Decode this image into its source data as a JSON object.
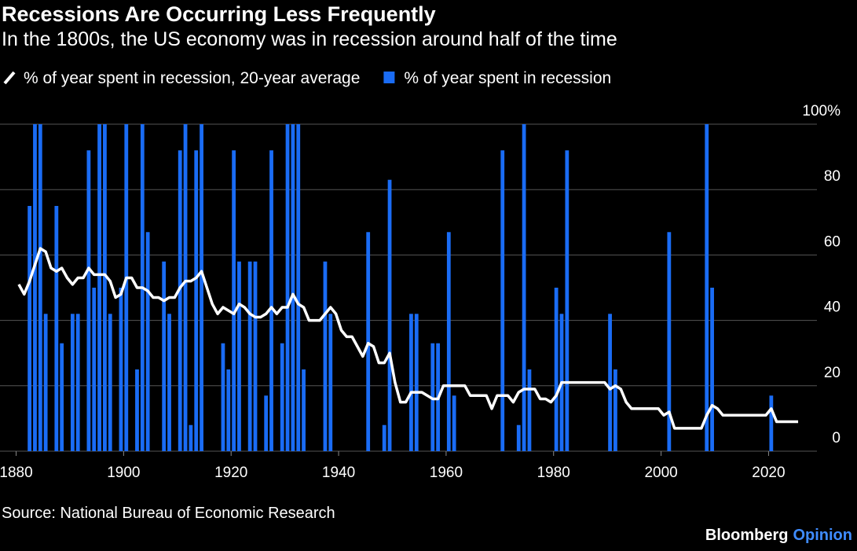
{
  "chart_data": {
    "type": "bar",
    "title": "Recessions Are Occurring Less Frequently",
    "subtitle": "In the 1800s, the US economy was in recession around half of the time",
    "source": "Source: National Bureau of Economic Research",
    "brand": "Bloomberg",
    "brand_suffix": "Opinion",
    "xlim": [
      1877,
      2029
    ],
    "xticks": [
      1880,
      1900,
      1920,
      1940,
      1960,
      1980,
      2000,
      2020
    ],
    "ylim": [
      0,
      100
    ],
    "yticks": [
      0,
      20,
      40,
      60,
      80,
      {
        "value": 100,
        "label": "100%"
      }
    ],
    "grid": true,
    "legend": "top-left",
    "series": [
      {
        "name": "% of year spent in recession, 20-year average",
        "color": "#ffffff",
        "type": "line",
        "x": [
          1880,
          1881,
          1882,
          1883,
          1884,
          1885,
          1886,
          1887,
          1888,
          1889,
          1890,
          1891,
          1892,
          1893,
          1894,
          1895,
          1896,
          1897,
          1898,
          1899,
          1900,
          1901,
          1902,
          1903,
          1904,
          1905,
          1906,
          1907,
          1908,
          1909,
          1910,
          1911,
          1912,
          1913,
          1914,
          1915,
          1916,
          1917,
          1918,
          1919,
          1920,
          1921,
          1922,
          1923,
          1924,
          1925,
          1926,
          1927,
          1928,
          1929,
          1930,
          1931,
          1932,
          1933,
          1934,
          1935,
          1936,
          1937,
          1938,
          1939,
          1940,
          1941,
          1942,
          1943,
          1944,
          1945,
          1946,
          1947,
          1948,
          1949,
          1950,
          1951,
          1952,
          1953,
          1954,
          1955,
          1956,
          1957,
          1958,
          1959,
          1960,
          1961,
          1962,
          1963,
          1964,
          1965,
          1966,
          1967,
          1968,
          1969,
          1970,
          1971,
          1972,
          1973,
          1974,
          1975,
          1976,
          1977,
          1978,
          1979,
          1980,
          1981,
          1982,
          1983,
          1984,
          1985,
          1986,
          1987,
          1988,
          1989,
          1990,
          1991,
          1992,
          1993,
          1994,
          1995,
          1996,
          1997,
          1998,
          1999,
          2000,
          2001,
          2002,
          2003,
          2004,
          2005,
          2006,
          2007,
          2008,
          2009,
          2010,
          2011,
          2012,
          2013,
          2014,
          2015,
          2016,
          2017,
          2018,
          2019,
          2020,
          2021,
          2022,
          2023,
          2024,
          2025
        ],
        "values": [
          51,
          48,
          52,
          57,
          62,
          61,
          56,
          55,
          56,
          53,
          51,
          53,
          53,
          56,
          54,
          54,
          54,
          52,
          47,
          48,
          53,
          53,
          50,
          50,
          49,
          47,
          47,
          46,
          47,
          47,
          50,
          52,
          52,
          53,
          55,
          50,
          45,
          42,
          44,
          43,
          42,
          45,
          44,
          42,
          41,
          41,
          42,
          44,
          42,
          44,
          44,
          48,
          45,
          44,
          40,
          40,
          40,
          42,
          44,
          42,
          37,
          35,
          35,
          32,
          29,
          33,
          32,
          27,
          27,
          30,
          21,
          15,
          15,
          18,
          18,
          18,
          17,
          16,
          16,
          20,
          20,
          20,
          20,
          20,
          17,
          17,
          17,
          17,
          13,
          17,
          17,
          17,
          15,
          18,
          19,
          19,
          19,
          16,
          16,
          15,
          17,
          21,
          21,
          21,
          21,
          21,
          21,
          21,
          21,
          21,
          19,
          20,
          19,
          15,
          13,
          13,
          13,
          13,
          13,
          13,
          11,
          12,
          7,
          7,
          7,
          7,
          7,
          7,
          11,
          14,
          13,
          11,
          11,
          11,
          11,
          11,
          11,
          11,
          11,
          11,
          13,
          9,
          9,
          9,
          9,
          9
        ]
      },
      {
        "name": "% of year spent in recession",
        "color": "#1a6cf5",
        "type": "bar",
        "x": [
          1882,
          1883,
          1884,
          1885,
          1887,
          1888,
          1890,
          1891,
          1893,
          1894,
          1895,
          1896,
          1897,
          1899,
          1900,
          1902,
          1903,
          1904,
          1907,
          1908,
          1910,
          1911,
          1912,
          1913,
          1914,
          1918,
          1919,
          1920,
          1921,
          1923,
          1924,
          1926,
          1927,
          1929,
          1930,
          1931,
          1932,
          1933,
          1937,
          1938,
          1945,
          1948,
          1949,
          1953,
          1954,
          1957,
          1958,
          1960,
          1961,
          1970,
          1973,
          1974,
          1975,
          1980,
          1981,
          1982,
          1990,
          1991,
          2001,
          2008,
          2009,
          2020
        ],
        "values": [
          75,
          100,
          100,
          42,
          75,
          33,
          42,
          42,
          92,
          50,
          100,
          100,
          42,
          50,
          100,
          25,
          100,
          67,
          58,
          42,
          92,
          100,
          8,
          92,
          100,
          33,
          25,
          92,
          58,
          58,
          58,
          17,
          92,
          33,
          100,
          100,
          100,
          25,
          58,
          42,
          67,
          8,
          83,
          42,
          42,
          33,
          33,
          67,
          17,
          92,
          8,
          100,
          25,
          50,
          42,
          92,
          42,
          25,
          67,
          100,
          50,
          17
        ]
      }
    ]
  }
}
